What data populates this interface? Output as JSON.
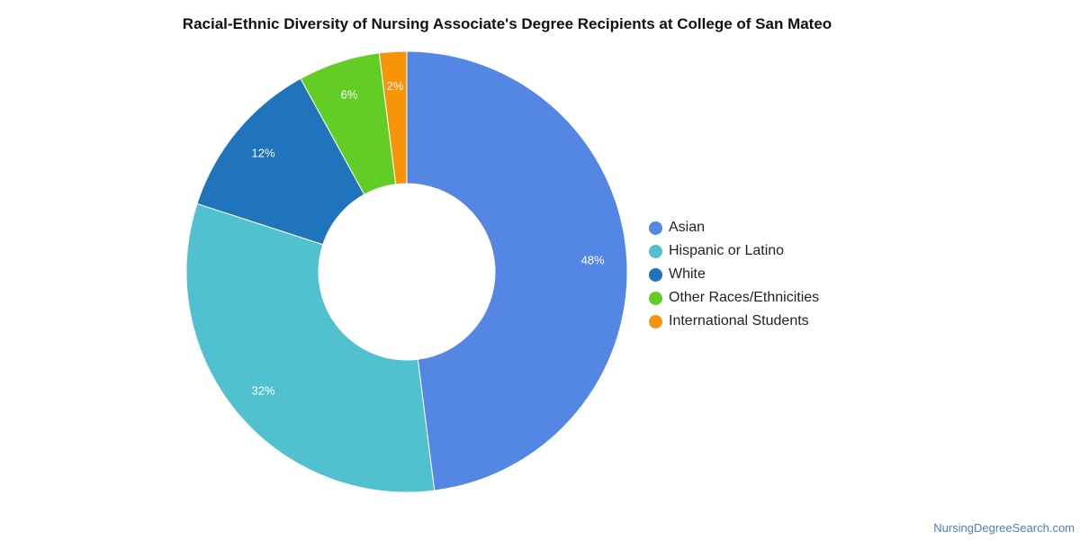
{
  "chart_data": {
    "type": "pie",
    "title": "Racial-Ethnic Diversity of Nursing Associate's Degree Recipients at College of San Mateo",
    "donut": true,
    "legend_position": "right",
    "series": [
      {
        "name": "Asian",
        "value": 48,
        "label": "48%",
        "color": "#5486e4"
      },
      {
        "name": "Hispanic or Latino",
        "value": 32,
        "label": "32%",
        "color": "#52c1cf"
      },
      {
        "name": "White",
        "value": 12,
        "label": "12%",
        "color": "#1f74bb"
      },
      {
        "name": "Other Races/Ethnicities",
        "value": 6,
        "label": "6%",
        "color": "#62ce25"
      },
      {
        "name": "International Students",
        "value": 2,
        "label": "2%",
        "color": "#f7940a"
      }
    ]
  },
  "watermark": "NursingDegreeSearch.com"
}
